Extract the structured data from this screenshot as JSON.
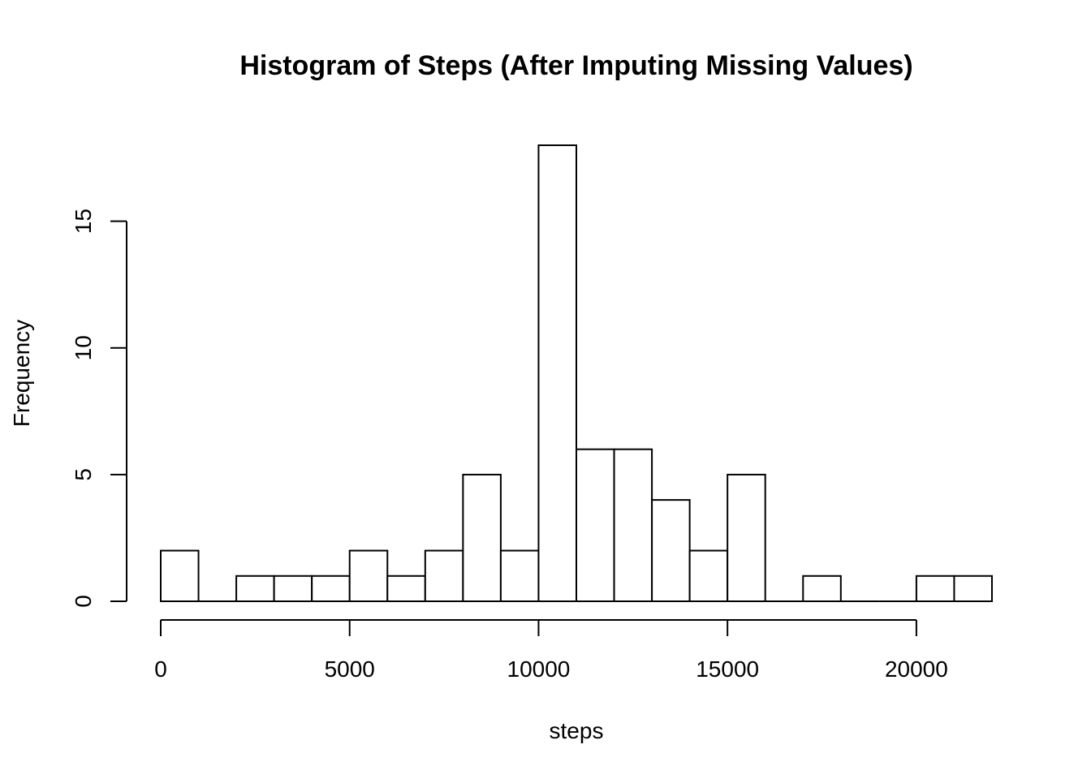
{
  "chart_data": {
    "type": "bar",
    "title": "Histogram of Steps (After Imputing Missing Values)",
    "xlabel": "steps",
    "ylabel": "Frequency",
    "bin_width": 1000,
    "bins": [
      {
        "start": 0,
        "end": 1000,
        "count": 2
      },
      {
        "start": 1000,
        "end": 2000,
        "count": 0
      },
      {
        "start": 2000,
        "end": 3000,
        "count": 1
      },
      {
        "start": 3000,
        "end": 4000,
        "count": 1
      },
      {
        "start": 4000,
        "end": 5000,
        "count": 1
      },
      {
        "start": 5000,
        "end": 6000,
        "count": 2
      },
      {
        "start": 6000,
        "end": 7000,
        "count": 1
      },
      {
        "start": 7000,
        "end": 8000,
        "count": 2
      },
      {
        "start": 8000,
        "end": 9000,
        "count": 5
      },
      {
        "start": 9000,
        "end": 10000,
        "count": 2
      },
      {
        "start": 10000,
        "end": 11000,
        "count": 18
      },
      {
        "start": 11000,
        "end": 12000,
        "count": 6
      },
      {
        "start": 12000,
        "end": 13000,
        "count": 6
      },
      {
        "start": 13000,
        "end": 14000,
        "count": 4
      },
      {
        "start": 14000,
        "end": 15000,
        "count": 2
      },
      {
        "start": 15000,
        "end": 16000,
        "count": 5
      },
      {
        "start": 16000,
        "end": 17000,
        "count": 0
      },
      {
        "start": 17000,
        "end": 18000,
        "count": 1
      },
      {
        "start": 18000,
        "end": 19000,
        "count": 0
      },
      {
        "start": 19000,
        "end": 20000,
        "count": 0
      },
      {
        "start": 20000,
        "end": 21000,
        "count": 1
      },
      {
        "start": 21000,
        "end": 22000,
        "count": 1
      }
    ],
    "x_ticks": [
      0,
      5000,
      10000,
      15000,
      20000
    ],
    "y_ticks": [
      0,
      5,
      10,
      15
    ],
    "xlim": [
      0,
      22000
    ],
    "ylim": [
      0,
      18
    ],
    "grid": false,
    "legend": "none"
  }
}
